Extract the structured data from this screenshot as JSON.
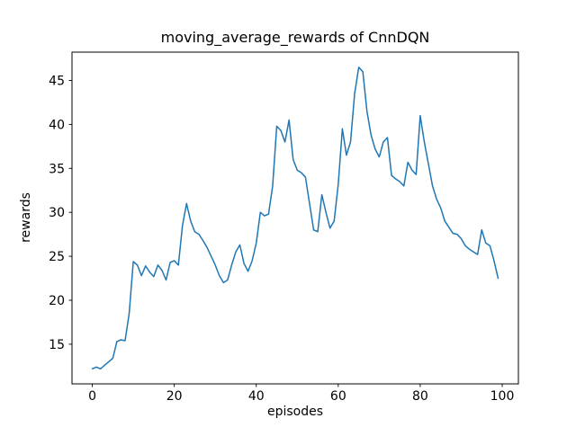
{
  "window": {
    "background": "#ffffff"
  },
  "chart_data": {
    "type": "line",
    "title": "moving_average_rewards of CnnDQN",
    "xlabel": "episodes",
    "ylabel": "rewards",
    "xticks": [
      0,
      20,
      40,
      60,
      80,
      100
    ],
    "yticks": [
      15,
      20,
      25,
      30,
      35,
      40,
      45
    ],
    "xlim": [
      -4.95,
      103.95
    ],
    "ylim": [
      10.49,
      48.22
    ],
    "grid": false,
    "legend": false,
    "line_color": "#1f77b4",
    "series": [
      {
        "x_start": 0,
        "x_step": 1,
        "values": [
          12.2,
          12.4,
          12.2,
          12.6,
          13.0,
          13.4,
          15.3,
          15.5,
          15.4,
          18.5,
          24.4,
          24.0,
          22.8,
          23.9,
          23.2,
          22.7,
          24.0,
          23.4,
          22.3,
          24.3,
          24.5,
          24.0,
          28.5,
          31.0,
          29.0,
          27.8,
          27.5,
          26.8,
          26.0,
          25.0,
          24.0,
          22.8,
          22.0,
          22.3,
          24.0,
          25.5,
          26.3,
          24.2,
          23.3,
          24.5,
          26.5,
          30.0,
          29.6,
          29.8,
          33.0,
          39.8,
          39.3,
          38.0,
          40.5,
          36.0,
          34.8,
          34.5,
          34.0,
          31.0,
          28.0,
          27.8,
          32.0,
          30.0,
          28.2,
          29.0,
          33.2,
          39.5,
          36.5,
          38.0,
          43.5,
          46.5,
          46.0,
          41.5,
          38.8,
          37.2,
          36.3,
          38.0,
          38.5,
          34.2,
          33.8,
          33.5,
          33.0,
          35.7,
          34.8,
          34.3,
          41.0,
          38.0,
          35.5,
          33.0,
          31.5,
          30.5,
          29.0,
          28.3,
          27.6,
          27.5,
          27.0,
          26.2,
          25.8,
          25.5,
          25.2,
          28.0,
          26.5,
          26.2,
          24.5,
          22.5
        ]
      }
    ]
  }
}
